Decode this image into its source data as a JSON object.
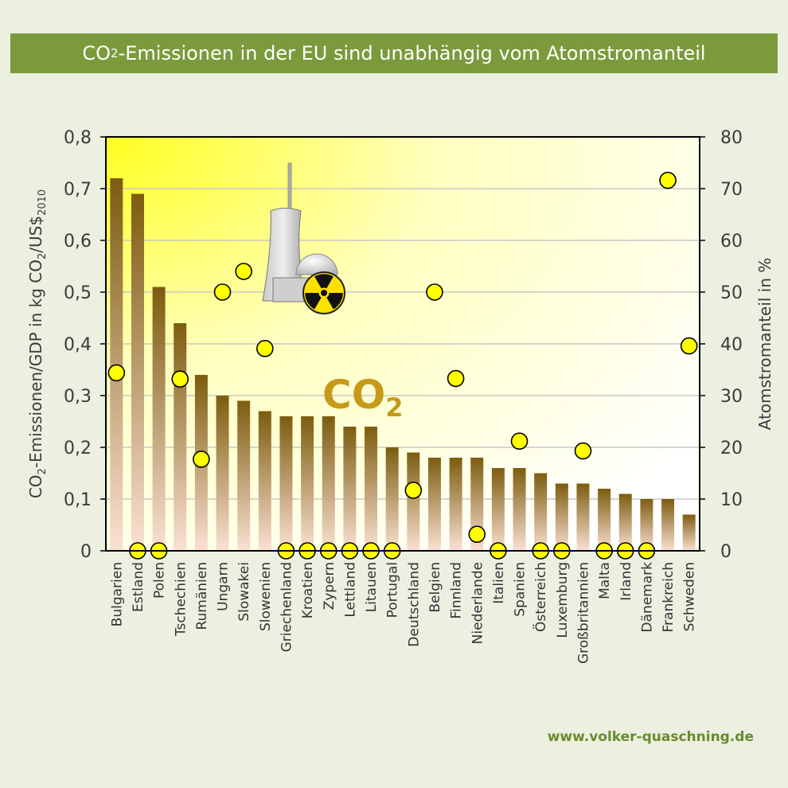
{
  "title": {
    "prefix": "CO",
    "sub": "2",
    "suffix": "-Emissionen in der EU sind unabhängig vom Atomstromanteil"
  },
  "footer": "www.volker-quaschning.de",
  "watermark": {
    "co": "CO",
    "sub": "2"
  },
  "colors": {
    "title_bar": "#7a9a3c",
    "background": "#ebf0e1",
    "bar_top": "#7d5c0f",
    "bar_bottom": "#fbe1d3",
    "marker": "#ffff00",
    "footer": "#6b8a2d"
  },
  "chart_data": {
    "type": "bar",
    "categories": [
      "Bulgarien",
      "Estland",
      "Polen",
      "Tschechien",
      "Rumänien",
      "Ungarn",
      "Slowakei",
      "Slowenien",
      "Griechenland",
      "Kroatien",
      "Zypern",
      "Lettland",
      "Litauen",
      "Portugal",
      "Deutschland",
      "Belgien",
      "Finnland",
      "Niederlande",
      "Italien",
      "Spanien",
      "Österreich",
      "Luxemburg",
      "Großbritannien",
      "Malta",
      "Irland",
      "Dänemark",
      "Frankreich",
      "Schweden"
    ],
    "series": [
      {
        "axis": "left",
        "kind": "bar",
        "values": [
          0.72,
          0.69,
          0.51,
          0.44,
          0.34,
          0.3,
          0.29,
          0.27,
          0.26,
          0.26,
          0.26,
          0.24,
          0.24,
          0.2,
          0.19,
          0.18,
          0.18,
          0.18,
          0.16,
          0.16,
          0.15,
          0.13,
          0.13,
          0.12,
          0.11,
          0.1,
          0.1,
          0.07
        ]
      },
      {
        "axis": "right",
        "kind": "scatter",
        "values": [
          34.4,
          0,
          0,
          33.2,
          17.7,
          50.0,
          54.0,
          39.1,
          0,
          0,
          0,
          0,
          0,
          0,
          11.7,
          50.0,
          33.3,
          3.2,
          0,
          21.2,
          0,
          0,
          19.3,
          0,
          0,
          0,
          71.6,
          39.6
        ]
      }
    ],
    "ylabel_left": {
      "parts": [
        {
          "t": "CO",
          "sub": false
        },
        {
          "t": "2",
          "sub": true
        },
        {
          "t": "-Emissionen/GDP in kg CO",
          "sub": false
        },
        {
          "t": "2",
          "sub": true
        },
        {
          "t": "/US$",
          "sub": false
        },
        {
          "t": "2010",
          "sub": true
        }
      ]
    },
    "ylabel_right": "Atomstromanteil in %",
    "ylim_left": [
      0,
      0.8
    ],
    "ylim_right": [
      0,
      80
    ],
    "yticks_left": [
      "0",
      "0,1",
      "0,2",
      "0,3",
      "0,4",
      "0,5",
      "0,6",
      "0,7",
      "0,8"
    ],
    "yticks_right": [
      "0",
      "10",
      "20",
      "30",
      "40",
      "50",
      "60",
      "70",
      "80"
    ],
    "grid": true
  }
}
